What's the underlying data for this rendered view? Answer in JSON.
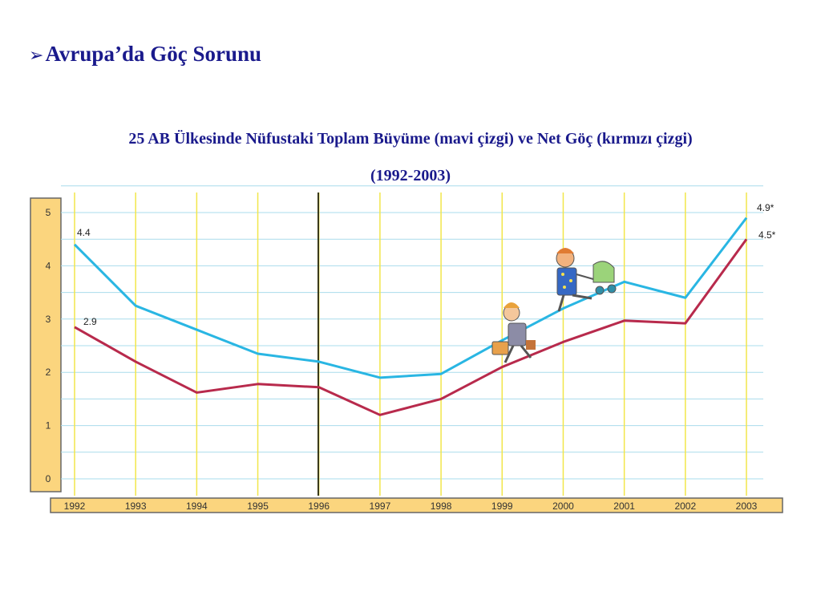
{
  "slide": {
    "heading": "Avrupa’da Göç Sorunu",
    "bullet_icon": "arrow-bullet-icon"
  },
  "chart_data": {
    "type": "line",
    "title": "25 AB Ülkesinde Nüfustaki Toplam Büyüme (mavi çizgi) ve Net Göç (kırmızı çizgi)",
    "subtitle": "(1992-2003)",
    "categories": [
      "1992",
      "1993",
      "1994",
      "1995",
      "1996",
      "1997",
      "1998",
      "1999",
      "2000",
      "2001",
      "2002",
      "2003"
    ],
    "yticks": [
      "0",
      "1",
      "2",
      "3",
      "4",
      "5"
    ],
    "ylim": [
      0,
      5
    ],
    "grid": true,
    "series": [
      {
        "values": [
          4.4,
          3.25,
          2.8,
          2.35,
          2.2,
          1.9,
          1.97,
          2.6,
          3.2,
          3.7,
          3.4,
          4.9
        ],
        "color": "#29b6e3"
      },
      {
        "values": [
          2.85,
          2.2,
          1.62,
          1.78,
          1.72,
          1.2,
          1.5,
          2.1,
          2.57,
          2.97,
          2.92,
          4.5
        ],
        "color": "#b82a4c"
      }
    ],
    "annotations": [
      "4.4",
      "2.9",
      "4.9*",
      "4.5*"
    ],
    "decoration_icon": "family-walking-stroller-icon"
  }
}
